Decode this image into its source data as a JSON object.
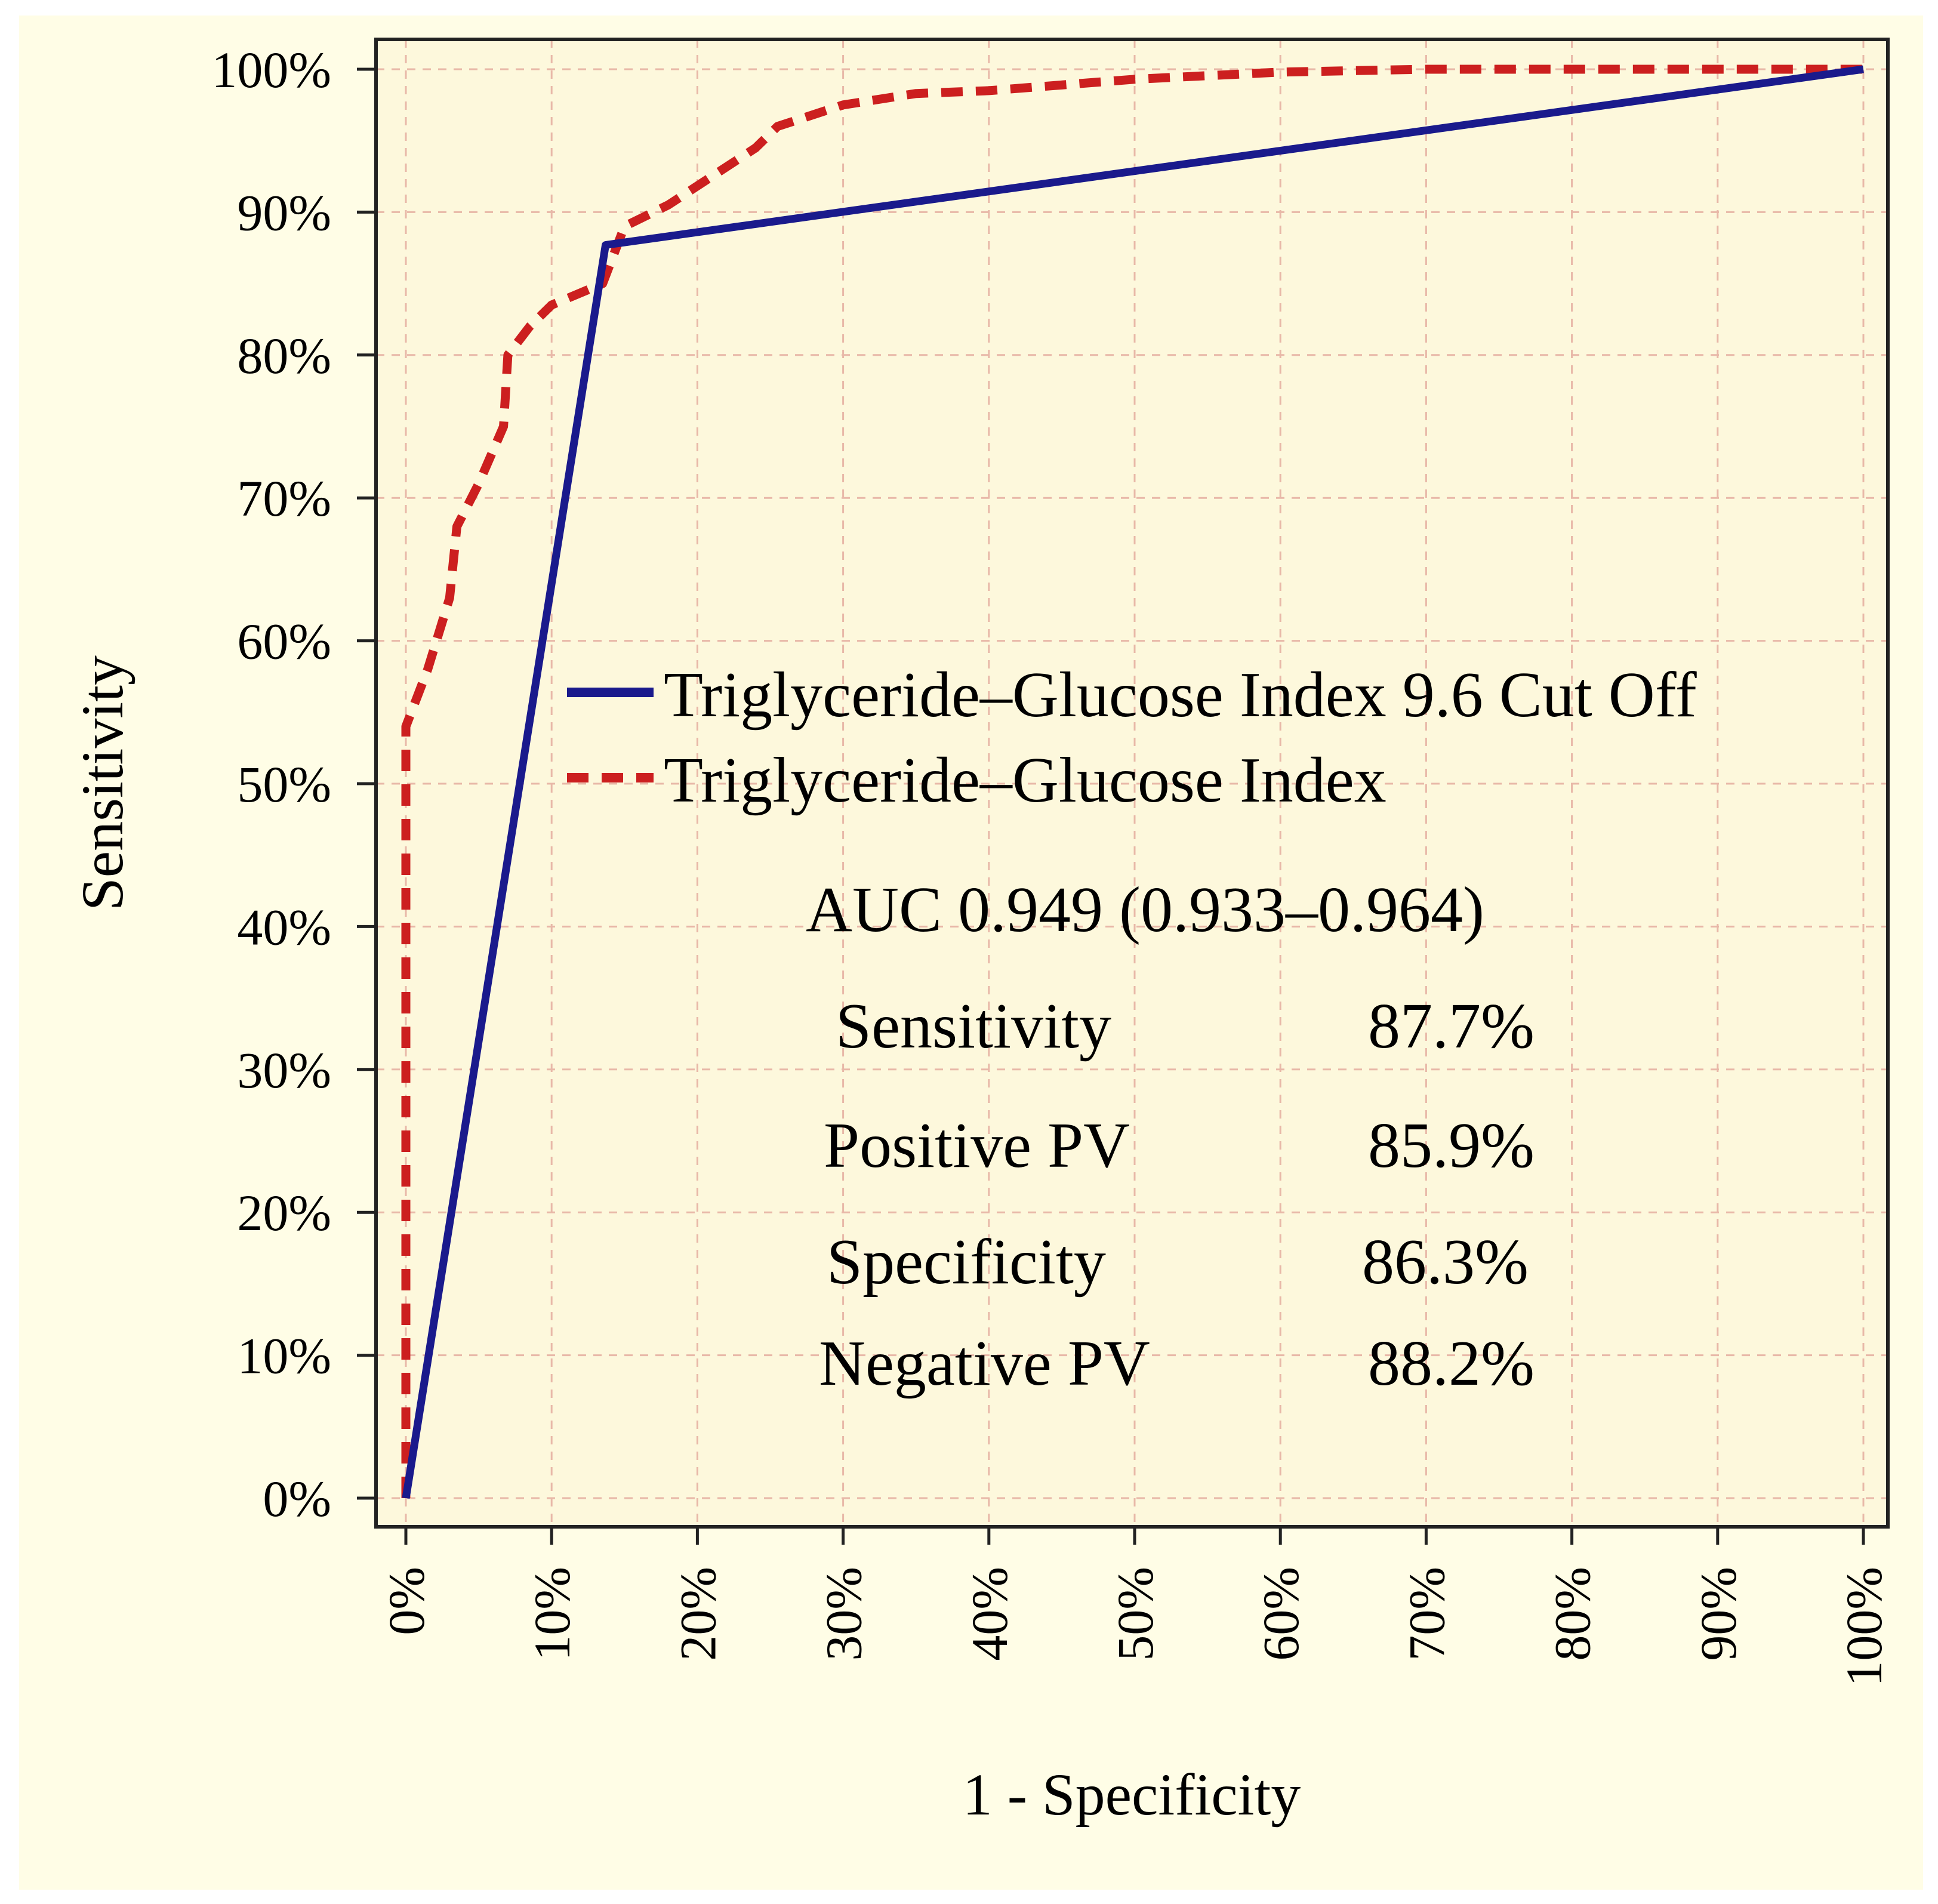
{
  "chart_data": {
    "type": "line",
    "title": "",
    "xlabel": "1 - Specificity",
    "ylabel": "Sensitivity",
    "xlim": [
      0,
      100
    ],
    "ylim": [
      0,
      100
    ],
    "grid": true,
    "x_ticks": [
      "0%",
      "10%",
      "20%",
      "30%",
      "40%",
      "50%",
      "60%",
      "70%",
      "80%",
      "90%",
      "100%"
    ],
    "y_ticks": [
      "0%",
      "10%",
      "20%",
      "30%",
      "40%",
      "50%",
      "60%",
      "70%",
      "80%",
      "90%",
      "100%"
    ],
    "legend_position": "center-right",
    "series": [
      {
        "name": "Triglyceride–Glucose Index 9.6 Cut Off",
        "color": "#1a1a8c",
        "style": "solid",
        "points": [
          [
            0,
            0
          ],
          [
            13.7,
            87.7
          ],
          [
            100,
            100
          ]
        ]
      },
      {
        "name": "Triglyceride–Glucose Index",
        "color": "#cc1f1f",
        "style": "dashed",
        "points": [
          [
            0,
            0
          ],
          [
            0,
            54
          ],
          [
            1.5,
            58
          ],
          [
            3,
            63
          ],
          [
            3.5,
            68
          ],
          [
            5,
            71
          ],
          [
            6.7,
            75
          ],
          [
            7,
            80
          ],
          [
            8.5,
            82
          ],
          [
            10,
            83.5
          ],
          [
            13.5,
            85
          ],
          [
            15,
            89
          ],
          [
            18,
            90.5
          ],
          [
            21,
            92.5
          ],
          [
            24,
            94.5
          ],
          [
            25.5,
            96
          ],
          [
            28.5,
            97
          ],
          [
            30,
            97.5
          ],
          [
            35,
            98.3
          ],
          [
            40,
            98.5
          ],
          [
            50,
            99.3
          ],
          [
            60,
            99.8
          ],
          [
            70,
            100
          ],
          [
            100,
            100
          ]
        ]
      }
    ],
    "annotations": {
      "auc": "AUC 0.949 (0.933–0.964)",
      "stats": [
        {
          "label": "Sensitivity",
          "value": "87.7%"
        },
        {
          "label": "Positive PV",
          "value": "85.9%"
        },
        {
          "label": "Specificity",
          "value": "86.3%"
        },
        {
          "label": "Negative PV",
          "value": "88.2%"
        }
      ]
    },
    "colors": {
      "figure_background": "#fffde6",
      "plot_background": "#fdf8dc",
      "grid": "#e8b8a8",
      "axis": "#222222"
    }
  }
}
